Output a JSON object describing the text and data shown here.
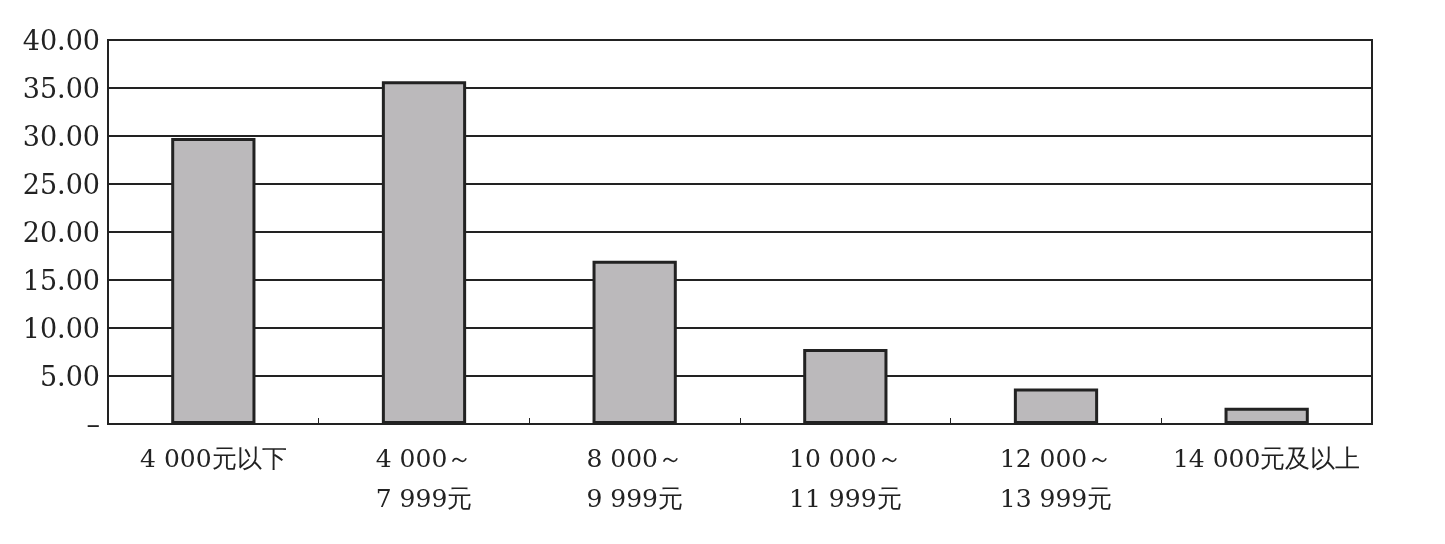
{
  "chart_data": {
    "type": "bar",
    "categories": [
      "4 000元以下",
      "4 000～\n7 999元",
      "8 000～\n9 999元",
      "10 000～\n11 999元",
      "12 000～\n13 999元",
      "14 000元及以上"
    ],
    "values": [
      29.8,
      35.7,
      17.0,
      7.8,
      3.7,
      1.7
    ],
    "color": "#bbb9bb",
    "ylim": [
      0,
      40
    ],
    "yticks": [
      {
        "value": 0,
        "label": "–"
      },
      {
        "value": 5,
        "label": "5.00"
      },
      {
        "value": 10,
        "label": "10.00"
      },
      {
        "value": 15,
        "label": "15.00"
      },
      {
        "value": 20,
        "label": "20.00"
      },
      {
        "value": 25,
        "label": "25.00"
      },
      {
        "value": 30,
        "label": "30.00"
      },
      {
        "value": 35,
        "label": "35.00"
      },
      {
        "value": 40,
        "label": "40.00"
      }
    ],
    "grid": "y"
  }
}
